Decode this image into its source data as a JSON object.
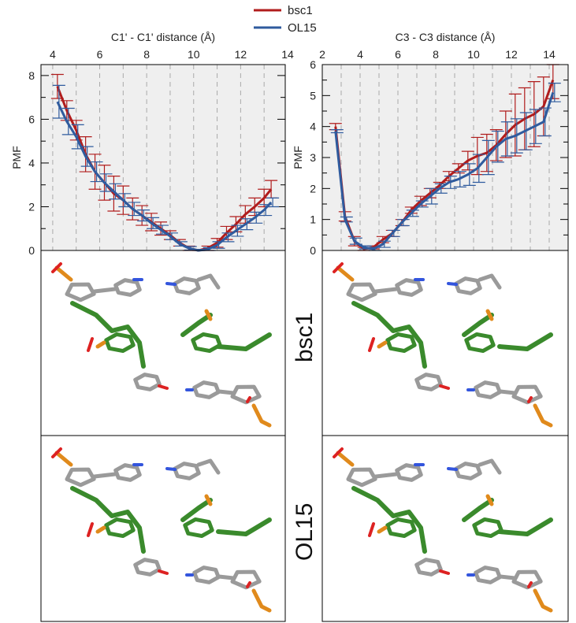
{
  "legend": [
    {
      "label": "bsc1",
      "color": "#b01c1c"
    },
    {
      "label": "OL15",
      "color": "#2f5b9e"
    }
  ],
  "row_labels": [
    "bsc1",
    "OL15"
  ],
  "chart_data": [
    {
      "type": "line",
      "title": "C1' - C1' distance (Å)",
      "xlabel": "C1' - C1' distance (Å)",
      "ylabel": "PMF",
      "xlim": [
        3.5,
        13.9
      ],
      "ylim": [
        0,
        8.5
      ],
      "xticks": [
        4,
        6,
        8,
        10,
        12,
        14
      ],
      "yticks": [
        0,
        2,
        4,
        6,
        8
      ],
      "grid": "vertical dashed",
      "legend_position": "top-center",
      "series": [
        {
          "name": "bsc1",
          "x": [
            4.2,
            4.6,
            5.0,
            5.4,
            5.8,
            6.2,
            6.6,
            7.0,
            7.4,
            7.8,
            8.2,
            8.6,
            9.0,
            9.4,
            9.8,
            10.2,
            10.6,
            11.0,
            11.4,
            11.8,
            12.2,
            12.6,
            13.0,
            13.3
          ],
          "y": [
            7.5,
            6.4,
            5.5,
            4.4,
            3.6,
            3.1,
            2.6,
            2.3,
            1.9,
            1.6,
            1.3,
            1.0,
            0.7,
            0.35,
            0.1,
            0.0,
            0.1,
            0.35,
            0.8,
            1.2,
            1.65,
            2.0,
            2.4,
            2.8
          ],
          "err": [
            0.55,
            0.45,
            0.45,
            0.8,
            0.8,
            0.8,
            0.8,
            0.65,
            0.5,
            0.45,
            0.4,
            0.3,
            0.2,
            0.15,
            0.1,
            0.05,
            0.1,
            0.2,
            0.3,
            0.35,
            0.4,
            0.4,
            0.4,
            0.4
          ]
        },
        {
          "name": "OL15",
          "x": [
            4.2,
            4.6,
            5.0,
            5.4,
            5.8,
            6.2,
            6.6,
            7.0,
            7.4,
            7.8,
            8.2,
            8.6,
            9.0,
            9.4,
            9.8,
            10.2,
            10.6,
            11.0,
            11.4,
            11.8,
            12.2,
            12.6,
            13.0,
            13.3
          ],
          "y": [
            6.8,
            5.9,
            5.2,
            4.3,
            3.6,
            3.1,
            2.7,
            2.3,
            1.9,
            1.6,
            1.25,
            0.95,
            0.65,
            0.3,
            0.1,
            0.0,
            0.05,
            0.25,
            0.6,
            0.9,
            1.2,
            1.5,
            1.85,
            2.2
          ],
          "err": [
            0.75,
            0.6,
            0.55,
            0.45,
            0.45,
            0.4,
            0.35,
            0.3,
            0.3,
            0.25,
            0.25,
            0.2,
            0.15,
            0.1,
            0.08,
            0.05,
            0.08,
            0.15,
            0.2,
            0.25,
            0.25,
            0.25,
            0.25,
            0.2
          ]
        }
      ]
    },
    {
      "type": "line",
      "title": "C3 - C3 distance (Å)",
      "xlabel": "C3 - C3 distance (Å)",
      "ylabel": "PMF",
      "xlim": [
        2,
        15
      ],
      "ylim": [
        0,
        6
      ],
      "xticks": [
        2,
        4,
        6,
        8,
        10,
        12,
        14
      ],
      "yticks": [
        0,
        1,
        2,
        3,
        4,
        5,
        6
      ],
      "grid": "vertical dashed",
      "legend_position": "top-center",
      "series": [
        {
          "name": "bsc1",
          "x": [
            2.7,
            3.2,
            3.7,
            4.2,
            4.7,
            5.2,
            5.7,
            6.2,
            6.7,
            7.2,
            7.7,
            8.2,
            8.7,
            9.2,
            9.7,
            10.2,
            10.7,
            11.2,
            11.7,
            12.2,
            12.7,
            13.2,
            13.7,
            14.2
          ],
          "y": [
            4.0,
            1.1,
            0.3,
            0.05,
            0.1,
            0.35,
            0.55,
            0.9,
            1.3,
            1.6,
            1.85,
            2.1,
            2.4,
            2.65,
            2.9,
            3.05,
            3.15,
            3.4,
            3.75,
            4.05,
            4.25,
            4.4,
            4.65,
            5.5
          ],
          "err": [
            0.1,
            0.15,
            0.15,
            0.05,
            0.05,
            0.1,
            0.1,
            0.1,
            0.1,
            0.15,
            0.15,
            0.1,
            0.15,
            0.15,
            0.3,
            0.6,
            0.6,
            0.5,
            0.75,
            1.0,
            1.0,
            1.05,
            0.95,
            0.6
          ]
        },
        {
          "name": "OL15",
          "x": [
            2.7,
            3.2,
            3.7,
            4.2,
            4.7,
            5.2,
            5.7,
            6.2,
            6.7,
            7.2,
            7.7,
            8.2,
            8.7,
            9.2,
            9.7,
            10.2,
            10.7,
            11.2,
            11.7,
            12.2,
            12.7,
            13.2,
            13.7,
            14.2
          ],
          "y": [
            3.85,
            1.0,
            0.3,
            0.1,
            0.05,
            0.2,
            0.55,
            0.9,
            1.2,
            1.5,
            1.75,
            2.0,
            2.2,
            2.3,
            2.45,
            2.65,
            3.0,
            3.35,
            3.6,
            3.7,
            3.85,
            4.0,
            4.15,
            5.1
          ],
          "err": [
            0.05,
            0.08,
            0.1,
            0.05,
            0.05,
            0.1,
            0.1,
            0.1,
            0.1,
            0.1,
            0.25,
            0.15,
            0.2,
            0.25,
            0.35,
            0.45,
            0.55,
            0.5,
            0.55,
            0.55,
            0.6,
            0.55,
            0.45,
            0.3
          ]
        }
      ]
    }
  ]
}
